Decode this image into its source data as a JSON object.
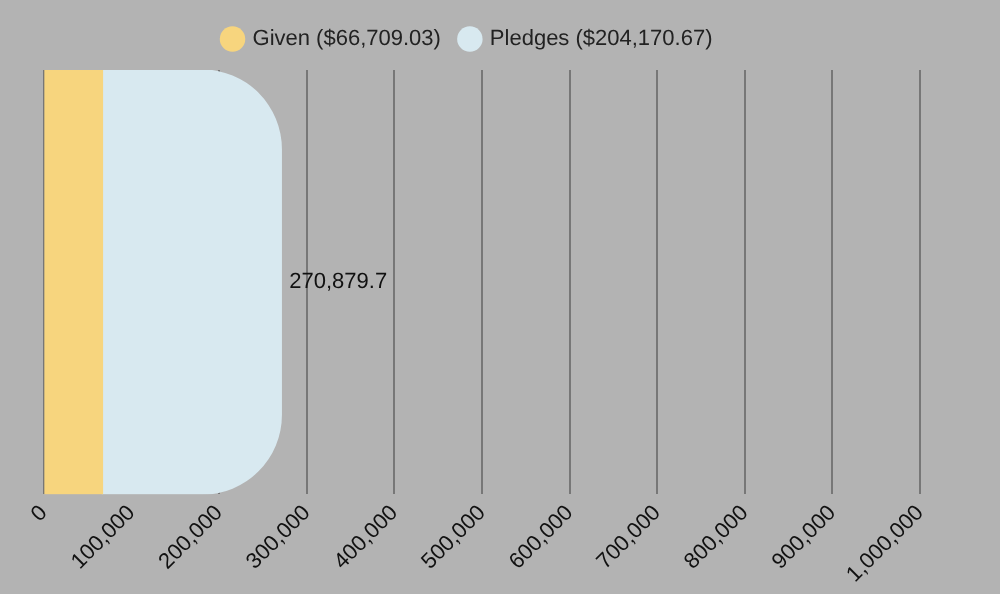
{
  "chart_data": {
    "type": "bar",
    "orientation": "horizontal",
    "stacked": true,
    "categories": [
      null
    ],
    "series": [
      {
        "name": "Given ($66,709.03)",
        "color": "#f7d57e",
        "values": [
          66709.03
        ]
      },
      {
        "name": "Pledges ($204,170.67)",
        "color": "#d8e9f0",
        "values": [
          204170.67
        ]
      }
    ],
    "totals": [
      "270,879.7"
    ],
    "xlim": [
      0,
      1000000
    ],
    "xticks": [
      {
        "value": 0,
        "label": "0"
      },
      {
        "value": 100000,
        "label": "100,000"
      },
      {
        "value": 200000,
        "label": "200,000"
      },
      {
        "value": 300000,
        "label": "300,000"
      },
      {
        "value": 400000,
        "label": "400,000"
      },
      {
        "value": 500000,
        "label": "500,000"
      },
      {
        "value": 600000,
        "label": "600,000"
      },
      {
        "value": 700000,
        "label": "700,000"
      },
      {
        "value": 800000,
        "label": "800,000"
      },
      {
        "value": 900000,
        "label": "900,000"
      },
      {
        "value": 1000000,
        "label": "1,000,000"
      }
    ],
    "grid": "x",
    "legend": "top"
  }
}
